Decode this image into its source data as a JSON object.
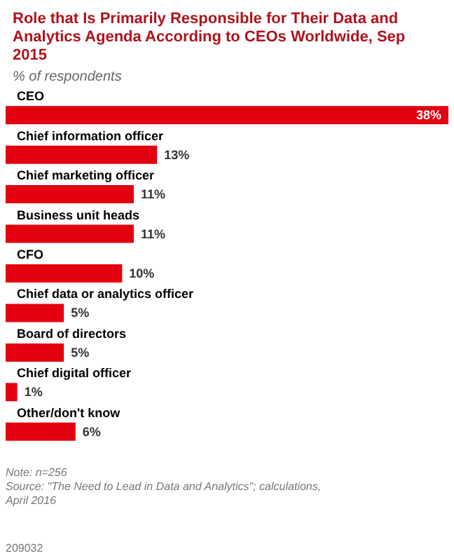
{
  "chart_data": {
    "type": "bar",
    "orientation": "horizontal",
    "title": "Role that Is Primarily Responsible for Their Data and Analytics Agenda According to CEOs Worldwide, Sep 2015",
    "subtitle": "% of respondents",
    "categories": [
      "CEO",
      "Chief information officer",
      "Chief marketing officer",
      "Business unit heads",
      "CFO",
      "Chief data or analytics officer",
      "Board of directors",
      "Chief digital officer",
      "Other/don't know"
    ],
    "values": [
      38,
      13,
      11,
      11,
      10,
      5,
      5,
      1,
      6
    ],
    "value_labels": [
      "38%",
      "13%",
      "11%",
      "11%",
      "10%",
      "5%",
      "5%",
      "1%",
      "6%"
    ],
    "color": "#e3000f",
    "annotations": [
      "Note: n=256",
      "Source: \"The Need to Lead in Data and Analytics\"; calculations, April 2016",
      "209032"
    ]
  }
}
